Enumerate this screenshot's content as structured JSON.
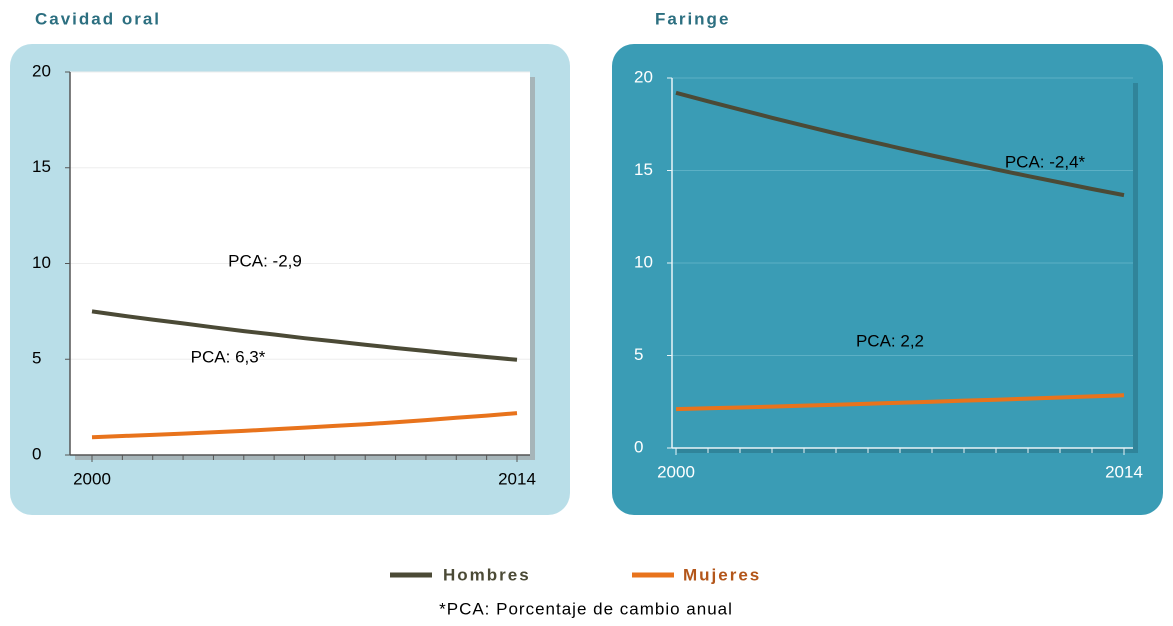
{
  "chart_data": [
    {
      "type": "line",
      "title": "Cavidad oral",
      "x": [
        2000,
        2001,
        2002,
        2003,
        2004,
        2005,
        2006,
        2007,
        2008,
        2009,
        2010,
        2011,
        2012,
        2013,
        2014
      ],
      "xticks": [
        2000,
        2014
      ],
      "ylim": [
        0,
        20
      ],
      "yticks": [
        0,
        5,
        10,
        15,
        20
      ],
      "grid": true,
      "series": [
        {
          "name": "Hombres",
          "color": "#4b4a36",
          "values": [
            7.5,
            7.28,
            7.07,
            6.87,
            6.67,
            6.47,
            6.29,
            6.1,
            5.93,
            5.76,
            5.59,
            5.43,
            5.27,
            5.12,
            4.97
          ]
        },
        {
          "name": "Mujeres",
          "color": "#e8731c",
          "values": [
            0.93,
            0.99,
            1.05,
            1.12,
            1.19,
            1.26,
            1.34,
            1.43,
            1.52,
            1.61,
            1.71,
            1.82,
            1.94,
            2.06,
            2.19
          ]
        }
      ],
      "annotations": [
        "PCA: -2,9",
        "PCA: 6,3*"
      ]
    },
    {
      "type": "line",
      "title": "Faringe",
      "x": [
        2000,
        2001,
        2002,
        2003,
        2004,
        2005,
        2006,
        2007,
        2008,
        2009,
        2010,
        2011,
        2012,
        2013,
        2014
      ],
      "xticks": [
        2000,
        2014
      ],
      "ylim": [
        0,
        20
      ],
      "yticks": [
        0,
        5,
        10,
        15,
        20
      ],
      "grid": true,
      "series": [
        {
          "name": "Hombres",
          "color": "#4b4a36",
          "values": [
            19.2,
            18.74,
            18.29,
            17.85,
            17.42,
            17.0,
            16.6,
            16.2,
            15.81,
            15.43,
            15.06,
            14.7,
            14.35,
            14.0,
            13.67
          ]
        },
        {
          "name": "Mujeres",
          "color": "#e8731c",
          "values": [
            2.1,
            2.15,
            2.19,
            2.24,
            2.29,
            2.34,
            2.39,
            2.45,
            2.5,
            2.56,
            2.61,
            2.67,
            2.73,
            2.79,
            2.85
          ]
        }
      ],
      "annotations": [
        "PCA: -2,4*",
        "PCA: 2,2"
      ]
    }
  ],
  "footnote": "*PCA: Porcentaje de cambio anual"
}
